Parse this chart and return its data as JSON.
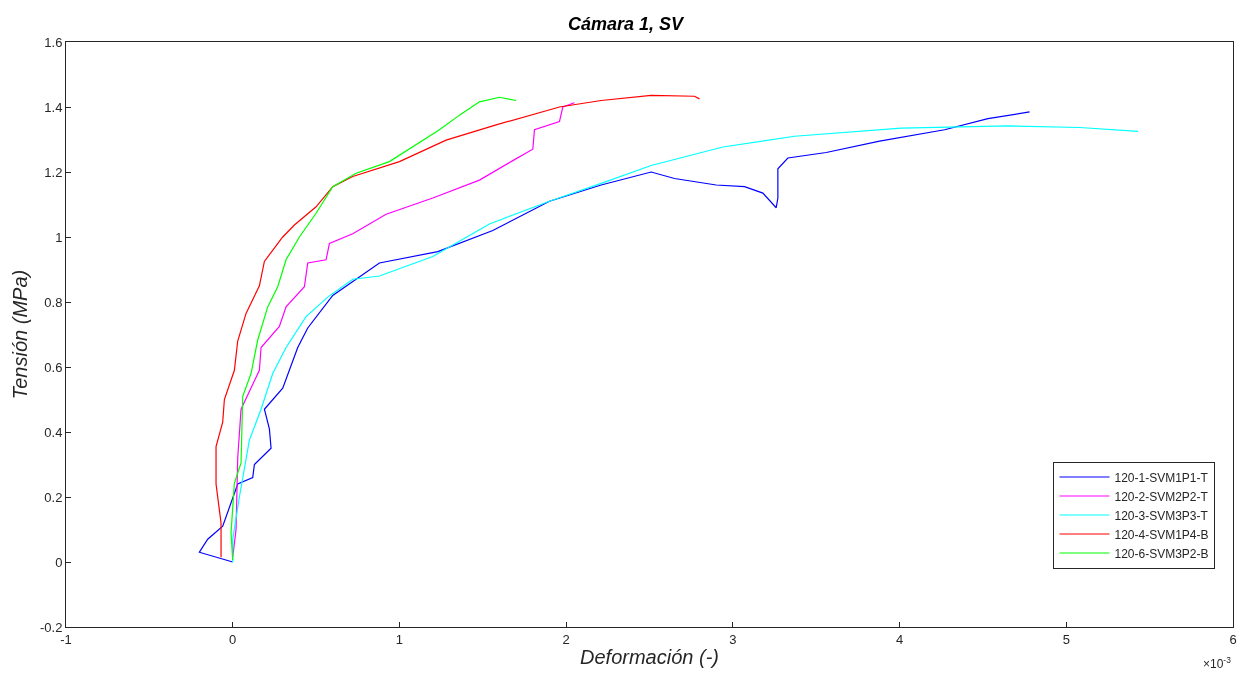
{
  "chart_data": {
    "type": "line",
    "title": "Cámara 1, SV",
    "xlabel": "Deformación (-)",
    "ylabel": "Tensión (MPa)",
    "annotations": [
      "×10$^{-3}$"
    ],
    "xlim": [
      -1,
      6
    ],
    "xticks": [
      -1,
      0,
      1,
      2,
      3,
      4,
      5,
      6
    ],
    "ylim": [
      -0.2,
      1.6
    ],
    "yticks": [
      -0.2,
      0,
      0.2,
      0.4,
      0.6,
      0.8,
      1,
      1.2,
      1.4,
      1.6
    ],
    "legend": "bottom right",
    "marker": "none",
    "line_style": "solid",
    "series": [
      {
        "name": "120-1-SVM1P1-T",
        "color": "#0000ff",
        "x": [
          0,
          -0.2,
          -0.15,
          -0.06,
          0.03,
          0.12,
          0.13,
          0.23,
          0.22,
          0.19,
          0.3,
          0.39,
          0.45,
          0.6,
          0.88,
          1.23,
          1.56,
          1.9,
          2.21,
          2.51,
          2.65,
          2.9,
          3.07,
          3.18,
          3.26,
          3.27,
          3.27,
          3.33,
          3.56,
          3.88,
          4.27,
          4.53,
          4.78
        ],
        "values": [
          0,
          0.03,
          0.07,
          0.11,
          0.24,
          0.26,
          0.3,
          0.35,
          0.41,
          0.47,
          0.535,
          0.66,
          0.72,
          0.82,
          0.92,
          0.955,
          1.02,
          1.11,
          1.16,
          1.2,
          1.18,
          1.16,
          1.155,
          1.135,
          1.09,
          1.12,
          1.21,
          1.243,
          1.26,
          1.295,
          1.33,
          1.364,
          1.385
        ]
      },
      {
        "name": "120-2-SVM2P2-T",
        "color": "#ff00ff",
        "x": [
          0,
          0.02,
          0.03,
          0.05,
          0.16,
          0.17,
          0.28,
          0.32,
          0.43,
          0.45,
          0.56,
          0.58,
          0.72,
          0.92,
          1.2,
          1.48,
          1.68,
          1.8,
          1.81,
          1.96,
          1.98,
          2.05
        ],
        "values": [
          0.015,
          0.1,
          0.32,
          0.47,
          0.59,
          0.66,
          0.725,
          0.785,
          0.847,
          0.92,
          0.93,
          0.98,
          1.01,
          1.07,
          1.12,
          1.175,
          1.235,
          1.27,
          1.33,
          1.355,
          1.4,
          1.413
        ]
      },
      {
        "name": "120-3-SVM3P3-T",
        "color": "#00ffff",
        "x": [
          0,
          0,
          0.04,
          0.1,
          0.17,
          0.24,
          0.32,
          0.44,
          0.57,
          0.72,
          0.88,
          1.2,
          1.54,
          1.9,
          2.21,
          2.51,
          2.94,
          3.37,
          4.01,
          4.65,
          5.08,
          5.43
        ],
        "values": [
          0,
          0.07,
          0.2,
          0.375,
          0.47,
          0.58,
          0.66,
          0.755,
          0.815,
          0.87,
          0.88,
          0.94,
          1.04,
          1.11,
          1.165,
          1.22,
          1.277,
          1.31,
          1.335,
          1.342,
          1.337,
          1.325
        ]
      },
      {
        "name": "120-4-SVM1P4-B",
        "color": "#ff0000",
        "x": [
          -0.07,
          -0.07,
          -0.1,
          -0.1,
          -0.06,
          -0.05,
          0.01,
          0.03,
          0.08,
          0.16,
          0.19,
          0.3,
          0.37,
          0.5,
          0.6,
          0.72,
          1,
          1.28,
          1.58,
          1.96,
          2.21,
          2.51,
          2.77,
          2.8
        ],
        "values": [
          0.015,
          0.12,
          0.24,
          0.355,
          0.43,
          0.5,
          0.59,
          0.68,
          0.765,
          0.85,
          0.925,
          1,
          1.037,
          1.093,
          1.155,
          1.186,
          1.232,
          1.298,
          1.345,
          1.4,
          1.42,
          1.436,
          1.433,
          1.425
        ]
      },
      {
        "name": "120-6-SVM3P2-B",
        "color": "#00ff00",
        "x": [
          0,
          -0.01,
          0.01,
          0.05,
          0.06,
          0.11,
          0.15,
          0.21,
          0.27,
          0.32,
          0.4,
          0.5,
          0.6,
          0.74,
          0.94,
          1.24,
          1.36,
          1.48,
          1.6,
          1.7
        ],
        "values": [
          0.006,
          0.09,
          0.243,
          0.305,
          0.51,
          0.58,
          0.683,
          0.785,
          0.847,
          0.93,
          1,
          1.073,
          1.155,
          1.196,
          1.232,
          1.33,
          1.375,
          1.416,
          1.43,
          1.42
        ]
      }
    ]
  }
}
